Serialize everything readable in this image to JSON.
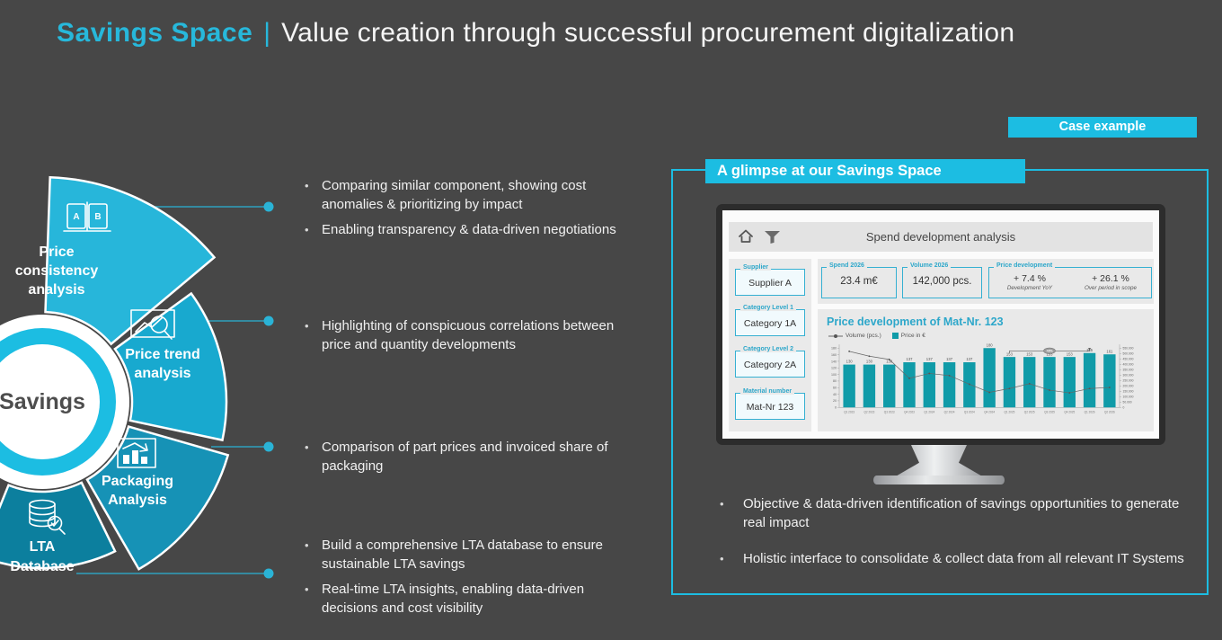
{
  "slide": {
    "title_accent": "Savings Space",
    "title_separator": "|",
    "title_rest": "Value creation through successful procurement digitalization",
    "background_color": "#474747",
    "accent_color": "#1cbde2"
  },
  "case_example_label": "Case example",
  "diagram": {
    "center_label": "Savings",
    "segments": [
      {
        "label": "Price consistency analysis",
        "lines": [
          "Price",
          "consistency",
          "analysis"
        ],
        "color": "#27b6da",
        "icon": "book-compare-icon"
      },
      {
        "label": "Price trend analysis",
        "lines": [
          "Price trend",
          "analysis"
        ],
        "color": "#18a9cf",
        "icon": "magnifier-trend-icon"
      },
      {
        "label": "Packaging Analysis",
        "lines": [
          "Packaging",
          "Analysis"
        ],
        "color": "#1692b6",
        "icon": "bar-chart-icon"
      },
      {
        "label": "LTA Database",
        "lines": [
          "LTA",
          "Database"
        ],
        "color": "#0c7f9e",
        "icon": "database-check-icon"
      }
    ]
  },
  "bullets": {
    "group1": [
      "Comparing similar component, showing cost anomalies & prioritizing by impact",
      "Enabling transparency & data-driven negotiations"
    ],
    "group2": [
      "Highlighting of conspicuous correlations between price and quantity developments"
    ],
    "group3": [
      "Comparison of part prices and invoiced share of packaging"
    ],
    "group4": [
      "Build a comprehensive LTA database to ensure sustainable LTA savings",
      "Real-time LTA insights, enabling data-driven decisions and cost visibility"
    ]
  },
  "panel": {
    "header": "A glimpse at our Savings Space",
    "bullets": [
      "Objective & data-driven identification of savings opportunities to generate real impact",
      "Holistic interface to consolidate & collect data from all relevant IT Systems"
    ]
  },
  "dashboard": {
    "title": "Spend development analysis",
    "filters": [
      {
        "label": "Supplier",
        "value": "Supplier A"
      },
      {
        "label": "Category Level 1",
        "value": "Category 1A"
      },
      {
        "label": "Category Level 2",
        "value": "Category 2A"
      },
      {
        "label": "Material number",
        "value": "Mat-Nr 123"
      }
    ],
    "stats": [
      {
        "label": "Spend 2026",
        "value": "23.4 m€"
      },
      {
        "label": "Volume 2026",
        "value": "142,000 pcs."
      },
      {
        "label": "Price development",
        "values": [
          {
            "value": "+ 7.4 %",
            "caption": "Development YoY"
          },
          {
            "value": "+ 26.1 %",
            "caption": "Over period in scope"
          }
        ]
      }
    ]
  },
  "chart_data": {
    "type": "bar",
    "title": "Price development of Mat-Nr. 123",
    "categories": [
      "Q1 2023",
      "Q2 2023",
      "Q3 2023",
      "Q4 2023",
      "Q1 2024",
      "Q2 2024",
      "Q3 2024",
      "Q4 2024",
      "Q1 2025",
      "Q2 2025",
      "Q3 2025",
      "Q4 2025",
      "Q1 2026",
      "Q2 2026"
    ],
    "series": [
      {
        "name": "Price in €",
        "type": "bar",
        "axis": "left",
        "color": "#109ba8",
        "values": [
          130,
          130,
          130,
          137,
          137,
          137,
          137,
          180,
          153,
          153,
          153,
          153,
          165,
          161
        ]
      },
      {
        "name": "Volume (pcs.)",
        "type": "line",
        "axis": "right",
        "color": "#666666",
        "values": [
          520000,
          475000,
          445000,
          270000,
          315000,
          295000,
          215000,
          140000,
          175000,
          220000,
          160000,
          135000,
          175000,
          185000
        ]
      }
    ],
    "left_axis": {
      "min": 0,
      "max": 180,
      "step": 20
    },
    "right_axis": {
      "min": 0,
      "max": 550000,
      "step": 50000
    },
    "annotation": {
      "text": "+8%",
      "from_index": 8,
      "to_index": 12
    },
    "legend_position": "top-left",
    "grid": false
  }
}
